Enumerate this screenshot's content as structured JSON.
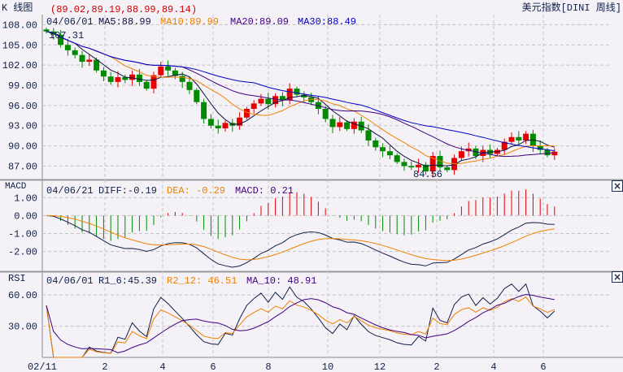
{
  "header": {
    "chart_label": "K 线图",
    "ohlc_readout": "(89.02,89.19,88.99,89.14)",
    "instrument": "美元指数[DINI 周线]"
  },
  "colors": {
    "up": "#e60000",
    "down": "#008a00",
    "ma5": "#101040",
    "ma10": "#f08000",
    "ma20": "#400080",
    "ma30": "#0000c8",
    "grid": "#c4c4c4",
    "axis": "#888888"
  },
  "chart_data": [
    {
      "type": "candlestick",
      "title": "美元指数[DINI 周线]",
      "legend": {
        "date": "04/06/01",
        "ma5": "MA5:88.99",
        "ma10": "MA10:89.99",
        "ma20": "MA20:89.09",
        "ma30": "MA30:88.49"
      },
      "yticks": [
        "108.00",
        "105.00",
        "102.00",
        "99.00",
        "96.00",
        "93.00",
        "90.00",
        "87.00"
      ],
      "ylim": [
        85,
        109.5
      ],
      "annotations": {
        "high": "107.31",
        "low": "84.56"
      },
      "start": 107.3,
      "closes": [
        107,
        106.5,
        105,
        104.2,
        103.5,
        102.5,
        102.8,
        101.2,
        100.3,
        99.5,
        100.2,
        99.8,
        100.6,
        99.5,
        98.5,
        100.5,
        101.8,
        101.2,
        100.4,
        99.5,
        98.3,
        96.5,
        94,
        93,
        92.6,
        93.4,
        93,
        94.2,
        95.5,
        96.3,
        97,
        96.2,
        97.4,
        96.8,
        98.5,
        97.6,
        97.2,
        96.5,
        95.5,
        94,
        92.8,
        93.5,
        92.5,
        93.6,
        92.3,
        90.8,
        89.8,
        89.2,
        88.6,
        87.6,
        87,
        86.8,
        87.2,
        86.2,
        88.5,
        86.8,
        86.4,
        88.2,
        89.2,
        89.6,
        88.5,
        89.4,
        88.8,
        89.4,
        90.6,
        91.3,
        90.8,
        91.8,
        90,
        89.4,
        88.6,
        89.14
      ]
    },
    {
      "type": "macd",
      "label": "MACD",
      "legend": {
        "date": "04/06/21",
        "diff": "DIFF:-0.19",
        "dea": "DEA: -0.29",
        "macd": "MACD: 0.21"
      },
      "yticks": [
        "1.00",
        "0.00",
        "-1.00",
        "-2.00"
      ],
      "ylim": [
        -3.1,
        1.6
      ]
    },
    {
      "type": "rsi",
      "label": "RSI",
      "legend": {
        "date": "04/06/01",
        "r1": "R1_6:45.39",
        "r2": "R2_12: 46.51",
        "ma": "MA_10: 48.91"
      },
      "yticks": [
        "60.00",
        "30.00"
      ],
      "ylim": [
        0,
        82
      ]
    }
  ],
  "xaxis": {
    "labels": [
      "02/11",
      "2",
      "4",
      "6",
      "8",
      "10",
      "12",
      "2",
      "4",
      "6"
    ]
  }
}
